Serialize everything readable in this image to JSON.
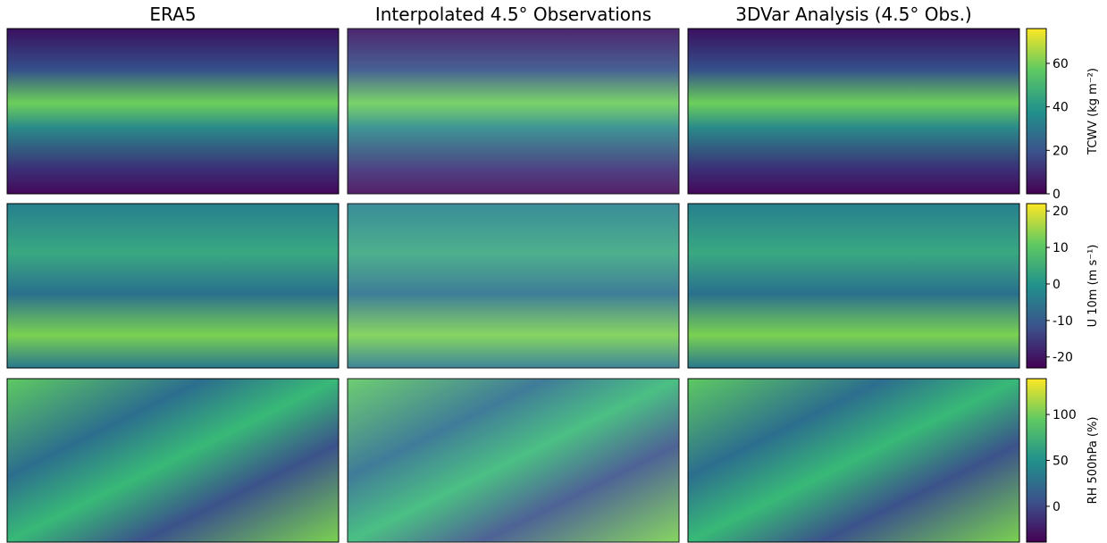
{
  "panel_titles": [
    "ERA5",
    "Interpolated 4.5° Observations",
    "3DVar Analysis (4.5° Obs.)"
  ],
  "rows": [
    {
      "colorbar_label": "TCWV (kg m⁻²)",
      "clim": [
        0,
        76
      ],
      "ticks": [
        0,
        20,
        40,
        60
      ]
    },
    {
      "colorbar_label": "U 10m (m s⁻¹)",
      "clim": [
        -23,
        22
      ],
      "ticks": [
        -20,
        -10,
        0,
        10,
        20
      ]
    },
    {
      "colorbar_label": "RH 500hPa (%)",
      "clim": [
        -39,
        139
      ],
      "ticks": [
        0,
        50,
        100
      ]
    }
  ]
}
